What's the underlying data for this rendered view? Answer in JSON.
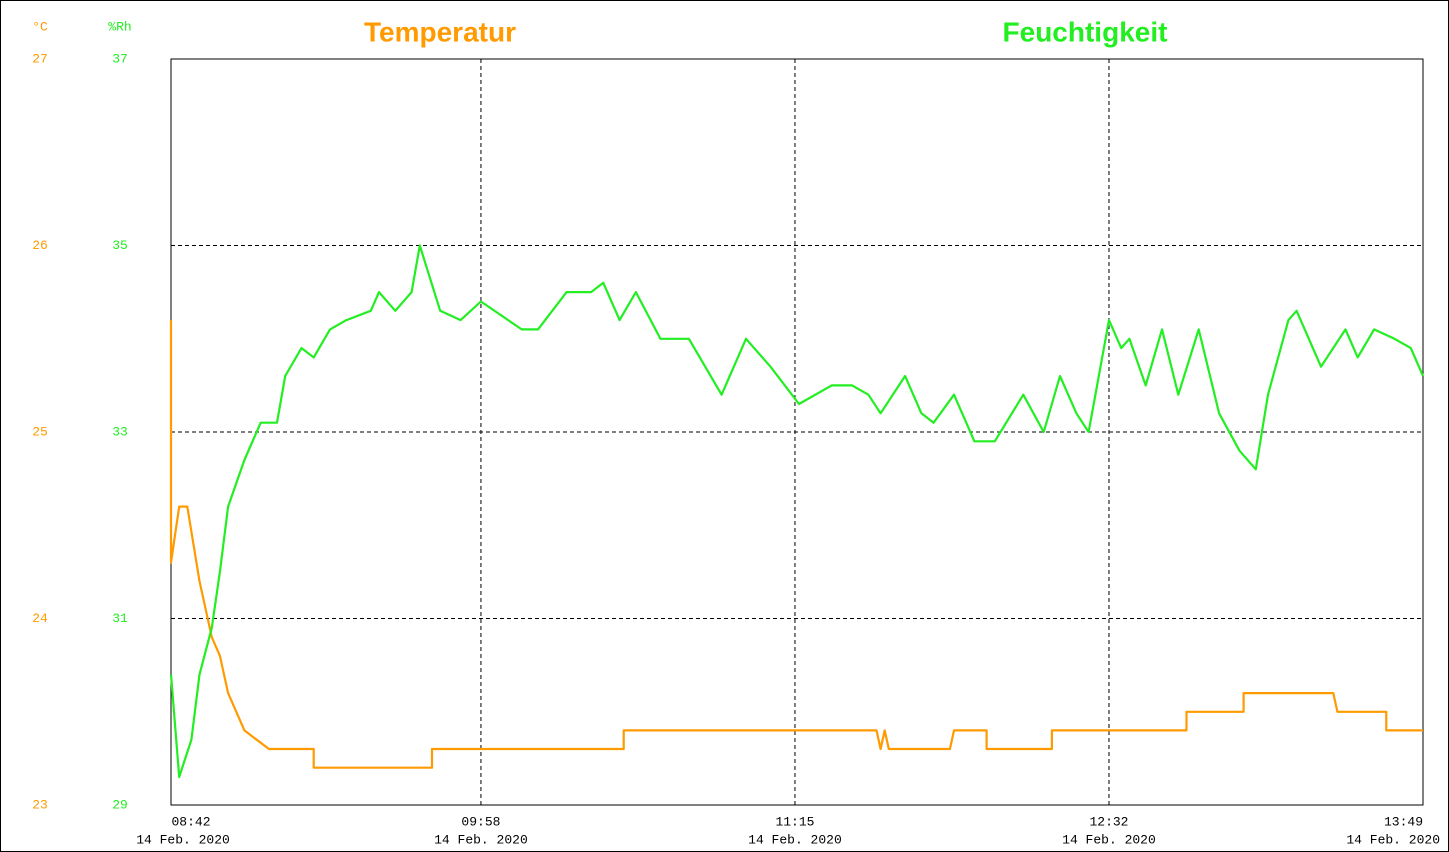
{
  "chart_data": {
    "type": "line",
    "titles": [
      {
        "text": "Temperatur",
        "color": "#ff9a00"
      },
      {
        "text": "Feuchtigkeit",
        "color": "#22ee22"
      }
    ],
    "ylabel": "°C",
    "y2label": "%Rh",
    "xlim": [
      "2020-02-14 08:42",
      "2020-02-14 13:49"
    ],
    "xticks": [
      {
        "value": "2020-02-14 08:42",
        "label": "08:42",
        "date": "14 Feb. 2020"
      },
      {
        "value": "2020-02-14 09:58",
        "label": "09:58",
        "date": "14 Feb. 2020"
      },
      {
        "value": "2020-02-14 11:15",
        "label": "11:15",
        "date": "14 Feb. 2020"
      },
      {
        "value": "2020-02-14 12:32",
        "label": "12:32",
        "date": "14 Feb. 2020"
      },
      {
        "value": "2020-02-14 13:49",
        "label": "13:49",
        "date": "14 Feb. 2020"
      }
    ],
    "ylim": [
      23,
      27
    ],
    "yticks": [
      23,
      24,
      25,
      26,
      27
    ],
    "y2lim": [
      29,
      37
    ],
    "y2ticks": [
      29,
      31,
      33,
      35,
      37
    ],
    "grid": true,
    "series": [
      {
        "name": "Temperatur",
        "color": "#ff9a00",
        "axis": "y",
        "x": [
          "2020-02-14 08:42",
          "2020-02-14 08:42",
          "2020-02-14 08:44",
          "2020-02-14 08:46",
          "2020-02-14 08:49",
          "2020-02-14 08:52",
          "2020-02-14 08:54",
          "2020-02-14 08:56",
          "2020-02-14 09:00",
          "2020-02-14 09:06",
          "2020-02-14 09:17",
          "2020-02-14 09:17",
          "2020-02-14 09:46",
          "2020-02-14 09:46",
          "2020-02-14 10:33",
          "2020-02-14 10:33",
          "2020-02-14 11:35",
          "2020-02-14 11:36",
          "2020-02-14 11:37",
          "2020-02-14 11:38",
          "2020-02-14 11:53",
          "2020-02-14 11:54",
          "2020-02-14 12:02",
          "2020-02-14 12:02",
          "2020-02-14 12:18",
          "2020-02-14 12:18",
          "2020-02-14 12:51",
          "2020-02-14 12:51",
          "2020-02-14 13:05",
          "2020-02-14 13:05",
          "2020-02-14 13:27",
          "2020-02-14 13:28",
          "2020-02-14 13:40",
          "2020-02-14 13:40",
          "2020-02-14 13:49"
        ],
        "values": [
          25.6,
          24.3,
          24.6,
          24.6,
          24.2,
          23.9,
          23.8,
          23.6,
          23.4,
          23.3,
          23.3,
          23.2,
          23.2,
          23.3,
          23.3,
          23.4,
          23.4,
          23.3,
          23.4,
          23.3,
          23.3,
          23.4,
          23.4,
          23.3,
          23.3,
          23.4,
          23.4,
          23.5,
          23.5,
          23.6,
          23.6,
          23.5,
          23.5,
          23.4,
          23.4
        ]
      },
      {
        "name": "Feuchtigkeit",
        "color": "#22ee22",
        "axis": "y2",
        "x": [
          "2020-02-14 08:42",
          "2020-02-14 08:44",
          "2020-02-14 08:47",
          "2020-02-14 08:49",
          "2020-02-14 08:52",
          "2020-02-14 08:54",
          "2020-02-14 08:56",
          "2020-02-14 09:00",
          "2020-02-14 09:04",
          "2020-02-14 09:08",
          "2020-02-14 09:10",
          "2020-02-14 09:14",
          "2020-02-14 09:17",
          "2020-02-14 09:21",
          "2020-02-14 09:25",
          "2020-02-14 09:31",
          "2020-02-14 09:33",
          "2020-02-14 09:37",
          "2020-02-14 09:41",
          "2020-02-14 09:43",
          "2020-02-14 09:48",
          "2020-02-14 09:53",
          "2020-02-14 09:58",
          "2020-02-14 10:08",
          "2020-02-14 10:12",
          "2020-02-14 10:19",
          "2020-02-14 10:25",
          "2020-02-14 10:28",
          "2020-02-14 10:32",
          "2020-02-14 10:36",
          "2020-02-14 10:42",
          "2020-02-14 10:49",
          "2020-02-14 10:57",
          "2020-02-14 11:03",
          "2020-02-14 11:09",
          "2020-02-14 11:16",
          "2020-02-14 11:24",
          "2020-02-14 11:29",
          "2020-02-14 11:33",
          "2020-02-14 11:36",
          "2020-02-14 11:42",
          "2020-02-14 11:46",
          "2020-02-14 11:49",
          "2020-02-14 11:54",
          "2020-02-14 11:59",
          "2020-02-14 12:04",
          "2020-02-14 12:11",
          "2020-02-14 12:16",
          "2020-02-14 12:20",
          "2020-02-14 12:24",
          "2020-02-14 12:27",
          "2020-02-14 12:32",
          "2020-02-14 12:35",
          "2020-02-14 12:37",
          "2020-02-14 12:41",
          "2020-02-14 12:45",
          "2020-02-14 12:49",
          "2020-02-14 12:54",
          "2020-02-14 12:59",
          "2020-02-14 13:04",
          "2020-02-14 13:08",
          "2020-02-14 13:11",
          "2020-02-14 13:16",
          "2020-02-14 13:18",
          "2020-02-14 13:24",
          "2020-02-14 13:30",
          "2020-02-14 13:33",
          "2020-02-14 13:37",
          "2020-02-14 13:42",
          "2020-02-14 13:46",
          "2020-02-14 13:49"
        ],
        "values": [
          30.4,
          29.3,
          29.7,
          30.4,
          30.9,
          31.5,
          32.2,
          32.7,
          33.1,
          33.1,
          33.6,
          33.9,
          33.8,
          34.1,
          34.2,
          34.3,
          34.5,
          34.3,
          34.5,
          35.0,
          34.3,
          34.2,
          34.4,
          34.1,
          34.1,
          34.5,
          34.5,
          34.6,
          34.2,
          34.5,
          34.0,
          34.0,
          33.4,
          34.0,
          33.7,
          33.3,
          33.5,
          33.5,
          33.4,
          33.2,
          33.6,
          33.2,
          33.1,
          33.4,
          32.9,
          32.9,
          33.4,
          33.0,
          33.6,
          33.2,
          33.0,
          34.2,
          33.9,
          34.0,
          33.5,
          34.1,
          33.4,
          34.1,
          33.2,
          32.8,
          32.6,
          33.4,
          34.2,
          34.3,
          33.7,
          34.1,
          33.8,
          34.1,
          34.0,
          33.9,
          33.6
        ]
      }
    ]
  }
}
